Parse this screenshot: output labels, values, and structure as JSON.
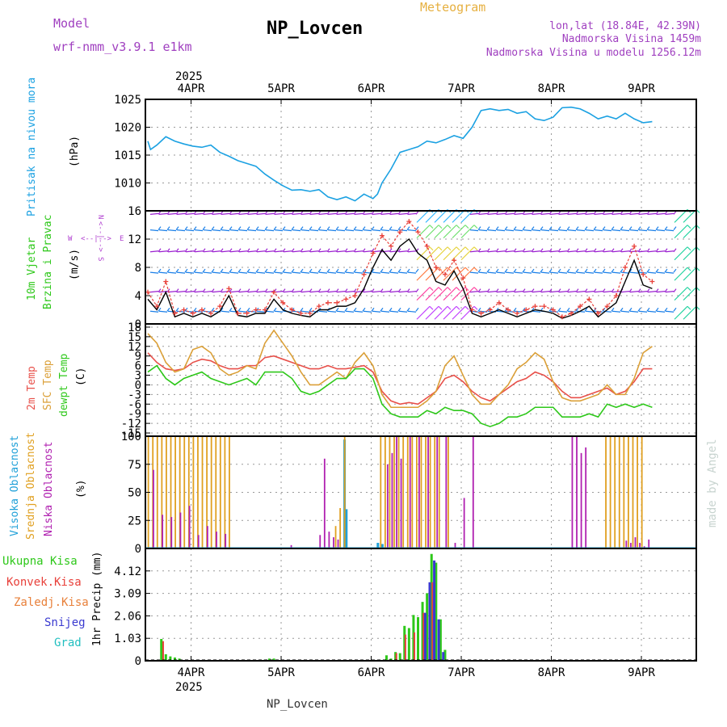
{
  "header": {
    "model_label": "Model",
    "model_name": "wrf-nmm_v3.9.1  e1km",
    "title": "NP_Lovcen",
    "subtitle": "Meteogram",
    "lonlat": "lon,lat (18.84E, 42.39N)",
    "elev": "Nadmorska Visina 1459m",
    "elev_model": "Nadmorska Visina u modelu 1256.12m",
    "watermark": "made by Angel",
    "footer_station": "NP_Lovcen",
    "year_top": "2025",
    "year_bottom": "2025"
  },
  "colors": {
    "pressure": "#1ba1e2",
    "wind_speed": "#000000",
    "wind_gust": "#e8403a",
    "barb_purple": "#9a1fd0",
    "barb_blue": "#1a7fe8",
    "t2m": "#e8504a",
    "sfc": "#dba038",
    "dew": "#2ec81a",
    "cloud_high": "#1fa0d8",
    "cloud_mid": "#e0a020",
    "cloud_low": "#b020b0",
    "rain_total": "#2ec81a",
    "rain_conv": "#e8403a",
    "snow": "#3a3ad0"
  },
  "panels": {
    "pressure": {
      "ylabel_side": "Pritisak na nivou mora",
      "ylabel_unit": "(hPa)",
      "yticks": [
        "1025",
        "1020",
        "1015",
        "1010"
      ]
    },
    "wind": {
      "ylabel_side_1": "10m Vjetar",
      "ylabel_side_2": "Brzina i Pravac",
      "ylabel_unit": "(m/s)",
      "compass_n": "N",
      "compass_e": "E",
      "compass_w": "W",
      "compass_s": "S",
      "compass_arrow_h": "<--|-->",
      "compass_arrow_v": "<--|-->",
      "yticks": [
        "16",
        "12",
        "8",
        "4",
        "0"
      ]
    },
    "temperature": {
      "ylabel_t2m": "2m Temp",
      "ylabel_sfc": "SFC Temp",
      "ylabel_dew": "dewpt Temp",
      "ylabel_unit": "(C)",
      "yticks": [
        "18",
        "15",
        "12",
        "9",
        "6",
        "3",
        "0",
        "-3",
        "-6",
        "-9",
        "-12",
        "-15"
      ]
    },
    "clouds": {
      "ylabel_high": "Visoka Oblacnost",
      "ylabel_mid": "Srednja Oblacnost",
      "ylabel_low": "Niska Oblacnost",
      "ylabel_unit": "(%)",
      "yticks": [
        "100",
        "75",
        "50",
        "25",
        "0"
      ]
    },
    "precip": {
      "legend_total": "Ukupna Kisa",
      "legend_conv": "Konvek.Kisa",
      "legend_frz": "Zaledj.Kisa",
      "legend_snow": "Snijeg",
      "legend_grad": "Grad",
      "ylabel": "1hr Precip (mm)",
      "yticks": [
        "4.12",
        "3.09",
        "2.06",
        "1.03",
        "0"
      ]
    }
  },
  "xaxis": {
    "labels": [
      "4APR",
      "5APR",
      "6APR",
      "7APR",
      "8APR",
      "9APR"
    ]
  },
  "chart_data": [
    {
      "type": "line",
      "panel": "pressure",
      "ylabel": "(hPa)",
      "ylim": [
        1005,
        1025
      ],
      "x_days": [
        0,
        0.03,
        0.1,
        0.2,
        0.3,
        0.4,
        0.5,
        0.6,
        0.7,
        0.8,
        0.9,
        1.0,
        1.1,
        1.2,
        1.3,
        1.4,
        1.5,
        1.6,
        1.7,
        1.8,
        1.9,
        2.0,
        2.1,
        2.2,
        2.3,
        2.4,
        2.5,
        2.55,
        2.6,
        2.7,
        2.8,
        2.9,
        3.0,
        3.1,
        3.2,
        3.3,
        3.4,
        3.5,
        3.6,
        3.7,
        3.8,
        3.9,
        4.0,
        4.1,
        4.2,
        4.3,
        4.4,
        4.5,
        4.6,
        4.7,
        4.8,
        4.9,
        5.0,
        5.1,
        5.2,
        5.3,
        5.4,
        5.5,
        5.6
      ],
      "values": [
        1017.5,
        1016,
        1016.8,
        1018.3,
        1017.5,
        1017.0,
        1016.6,
        1016.4,
        1016.8,
        1015.5,
        1014.8,
        1014.0,
        1013.5,
        1013.0,
        1011.6,
        1010.5,
        1009.5,
        1008.7,
        1008.8,
        1008.5,
        1008.8,
        1007.5,
        1007.0,
        1007.5,
        1006.8,
        1008.0,
        1007.2,
        1008.0,
        1010.0,
        1012.5,
        1015.5,
        1016.0,
        1016.5,
        1017.5,
        1017.2,
        1017.8,
        1018.5,
        1018.0,
        1020.0,
        1023.0,
        1023.3,
        1023.0,
        1023.2,
        1022.5,
        1022.8,
        1021.5,
        1021.2,
        1021.8,
        1023.5,
        1023.6,
        1023.3,
        1022.5,
        1021.5,
        1022.0,
        1021.5,
        1022.5,
        1021.5,
        1020.8,
        1021.0
      ]
    },
    {
      "type": "line",
      "panel": "wind",
      "ylabel": "(m/s)",
      "ylim": [
        0,
        16
      ],
      "series": [
        {
          "name": "",
          "x_days": [
            0,
            0.1,
            0.2,
            0.3,
            0.4,
            0.5,
            0.6,
            0.7,
            0.8,
            0.9,
            1.0,
            1.1,
            1.2,
            1.3,
            1.4,
            1.5,
            1.6,
            1.7,
            1.8,
            1.9,
            2.0,
            2.1,
            2.2,
            2.3,
            2.4,
            2.5,
            2.6,
            2.7,
            2.8,
            2.9,
            3.0,
            3.1,
            3.2,
            3.3,
            3.4,
            3.5,
            3.6,
            3.7,
            3.8,
            3.9,
            4.0,
            4.1,
            4.2,
            4.3,
            4.4,
            4.5,
            4.6,
            4.7,
            4.8,
            4.9,
            5.0,
            5.1,
            5.2,
            5.3,
            5.4,
            5.5,
            5.6
          ],
          "values": [
            3.5,
            2.0,
            4.5,
            1.0,
            1.5,
            1.0,
            1.5,
            1.0,
            1.8,
            4.0,
            1.2,
            1.0,
            1.5,
            1.5,
            3.5,
            2.0,
            1.5,
            1.2,
            1.0,
            2.0,
            2.0,
            2.5,
            2.5,
            3.0,
            5.0,
            8.0,
            10.5,
            9.0,
            11.0,
            12.0,
            10.0,
            9.0,
            6.0,
            5.5,
            7.5,
            5.0,
            1.5,
            1.0,
            1.5,
            2.0,
            1.5,
            1.0,
            1.5,
            2.0,
            1.8,
            1.5,
            0.8,
            1.2,
            1.8,
            2.5,
            1.0,
            2.0,
            3.0,
            6.0,
            9.0,
            5.5,
            5.0
          ]
        },
        {
          "name": "",
          "x_days": [
            0,
            0.1,
            0.2,
            0.3,
            0.4,
            0.5,
            0.6,
            0.7,
            0.8,
            0.9,
            1.0,
            1.1,
            1.2,
            1.3,
            1.4,
            1.5,
            1.6,
            1.7,
            1.8,
            1.9,
            2.0,
            2.1,
            2.2,
            2.3,
            2.4,
            2.5,
            2.6,
            2.7,
            2.8,
            2.9,
            3.0,
            3.1,
            3.2,
            3.3,
            3.4,
            3.5,
            3.6,
            3.7,
            3.8,
            3.9,
            4.0,
            4.1,
            4.2,
            4.3,
            4.4,
            4.5,
            4.6,
            4.7,
            4.8,
            4.9,
            5.0,
            5.1,
            5.2,
            5.3,
            5.4,
            5.5,
            5.6
          ],
          "values": [
            4.5,
            2.5,
            6.0,
            1.5,
            2.0,
            1.5,
            2.0,
            1.5,
            2.5,
            5.0,
            1.5,
            1.5,
            2.0,
            2.0,
            4.5,
            3.0,
            2.0,
            1.5,
            1.5,
            2.5,
            3.0,
            3.0,
            3.5,
            4.0,
            7.0,
            10.0,
            12.5,
            11.0,
            13.0,
            14.5,
            13.0,
            11.0,
            8.0,
            7.0,
            9.0,
            6.5,
            2.0,
            1.5,
            2.0,
            3.0,
            2.0,
            1.5,
            2.0,
            2.5,
            2.5,
            2.0,
            1.0,
            1.5,
            2.5,
            3.5,
            1.5,
            2.5,
            4.0,
            8.0,
            11.0,
            7.0,
            6.0
          ]
        }
      ]
    },
    {
      "type": "line",
      "panel": "temperature",
      "ylabel": "(C)",
      "ylim": [
        -16,
        19
      ],
      "x_days": [
        0,
        0.1,
        0.2,
        0.3,
        0.4,
        0.5,
        0.6,
        0.7,
        0.8,
        0.9,
        1.0,
        1.1,
        1.2,
        1.3,
        1.4,
        1.5,
        1.6,
        1.7,
        1.8,
        1.9,
        2.0,
        2.1,
        2.2,
        2.3,
        2.4,
        2.5,
        2.6,
        2.7,
        2.8,
        2.9,
        3.0,
        3.1,
        3.2,
        3.3,
        3.4,
        3.5,
        3.6,
        3.7,
        3.8,
        3.9,
        4.0,
        4.1,
        4.2,
        4.3,
        4.4,
        4.5,
        4.6,
        4.7,
        4.8,
        4.9,
        5.0,
        5.1,
        5.2,
        5.3,
        5.4,
        5.5,
        5.6
      ],
      "series": [
        {
          "name": "2m Temp",
          "values": [
            10,
            7,
            5,
            4.5,
            5,
            7,
            8,
            7.5,
            6,
            5,
            5,
            6,
            6,
            8.5,
            9,
            8,
            7,
            6,
            5,
            5,
            6,
            5,
            5,
            5.5,
            6,
            4,
            -2,
            -5,
            -6,
            -5.5,
            -6,
            -4,
            -2,
            2,
            3,
            1,
            -2,
            -4,
            -5,
            -3,
            -1,
            1,
            2,
            4,
            3,
            1,
            -2,
            -4,
            -4,
            -3,
            -2,
            -1,
            -3,
            -2,
            1,
            5,
            5
          ]
        },
        {
          "name": "SFC Temp",
          "values": [
            16,
            13,
            7,
            4,
            5,
            11,
            12,
            10,
            5,
            3,
            4,
            6,
            5,
            13,
            17,
            13,
            9,
            4,
            0,
            0,
            2,
            4,
            2,
            7,
            10,
            6,
            -3,
            -7,
            -7,
            -7,
            -7,
            -5,
            -2,
            6,
            9,
            3,
            -3,
            -6,
            -6,
            -3,
            0,
            5,
            7,
            10,
            8,
            1,
            -4,
            -5,
            -5,
            -4,
            -3,
            0,
            -3,
            -3,
            2,
            10,
            12
          ]
        },
        {
          "name": "dewpt Temp",
          "values": [
            4,
            6,
            2,
            0,
            2,
            3,
            4,
            2,
            1,
            0,
            1,
            2,
            0,
            4,
            4,
            4,
            2,
            -2,
            -3,
            -2,
            0,
            2,
            2,
            5,
            5,
            2,
            -6,
            -9,
            -10,
            -10,
            -10,
            -8,
            -9,
            -7,
            -8,
            -8,
            -9,
            -12,
            -13,
            -12,
            -10,
            -10,
            -9,
            -7,
            -7,
            -7,
            -10,
            -10,
            -10,
            -9,
            -10,
            -6,
            -7,
            -6,
            -7,
            -6,
            -7
          ]
        }
      ]
    },
    {
      "type": "bar",
      "panel": "clouds",
      "ylabel": "(%)",
      "ylim": [
        0,
        100
      ],
      "series": [
        {
          "name": "Visoka Oblacnost",
          "x_days": [
            2.18,
            2.2,
            2.55,
            2.6
          ],
          "values": [
            97,
            35,
            5,
            4
          ]
        },
        {
          "name": "Srednja Oblacnost",
          "x_days": [
            0.02,
            0.07,
            0.12,
            0.17,
            0.22,
            0.27,
            0.32,
            0.37,
            0.42,
            0.47,
            0.52,
            0.57,
            0.62,
            0.67,
            0.72,
            0.77,
            0.82,
            0.87,
            0.92,
            2.1,
            2.15,
            2.2,
            2.6,
            2.65,
            2.7,
            2.75,
            2.8,
            2.85,
            2.9,
            2.95,
            3.0,
            3.05,
            3.1,
            3.15,
            3.2,
            3.25,
            3.35,
            5.1,
            5.15,
            5.2,
            5.25,
            5.3,
            5.35,
            5.4,
            5.45,
            5.5
          ],
          "values": [
            100,
            100,
            100,
            100,
            100,
            100,
            100,
            100,
            100,
            100,
            100,
            100,
            100,
            100,
            100,
            100,
            100,
            100,
            100,
            20,
            36,
            100,
            100,
            100,
            100,
            100,
            100,
            100,
            100,
            100,
            100,
            100,
            100,
            100,
            100,
            100,
            100,
            100,
            100,
            100,
            100,
            100,
            100,
            100,
            100,
            100
          ]
        },
        {
          "name": "Niska Oblacnost",
          "x_days": [
            0.05,
            0.15,
            0.25,
            0.35,
            0.45,
            0.55,
            0.65,
            0.75,
            0.85,
            1.58,
            1.9,
            1.95,
            2.0,
            2.05,
            2.1,
            2.65,
            2.7,
            2.75,
            2.8,
            2.9,
            3.0,
            3.1,
            3.2,
            3.3,
            3.4,
            3.5,
            3.6,
            4.7,
            4.75,
            4.8,
            4.85,
            5.3,
            5.35,
            5.4,
            5.45,
            5.5,
            5.55
          ],
          "values": [
            70,
            30,
            28,
            32,
            38,
            12,
            20,
            15,
            13,
            3,
            12,
            80,
            15,
            10,
            8,
            75,
            85,
            100,
            80,
            100,
            100,
            100,
            100,
            100,
            5,
            45,
            100,
            100,
            100,
            85,
            90,
            7,
            5,
            10,
            5,
            2,
            8
          ]
        }
      ]
    },
    {
      "type": "bar",
      "panel": "precip",
      "ylabel": "1hr Precip (mm)",
      "ylim": [
        0,
        5.15
      ],
      "series": [
        {
          "name": "Ukupna Kisa",
          "x_days": [
            0.15,
            0.2,
            0.25,
            0.3,
            0.35,
            1.25,
            1.3,
            1.35,
            1.4,
            2.65,
            2.7,
            2.75,
            2.8,
            2.85,
            2.9,
            2.95,
            3.0,
            3.05,
            3.1,
            3.15,
            3.2,
            3.25,
            3.3
          ],
          "values": [
            1.0,
            0.3,
            0.2,
            0.15,
            0.1,
            0.05,
            0.05,
            0.1,
            0.1,
            0.25,
            0.1,
            0.4,
            0.35,
            1.6,
            1.5,
            2.1,
            2.0,
            2.7,
            3.1,
            4.9,
            4.5,
            1.9,
            0.5
          ]
        },
        {
          "name": "Konvek.Kisa",
          "x_days": [
            0.17,
            2.76,
            2.86,
            2.96,
            3.06,
            3.16
          ],
          "values": [
            0.9,
            0.35,
            1.2,
            1.3,
            2.2,
            3.6
          ]
        },
        {
          "name": "Snijeg",
          "x_days": [
            3.08,
            3.13,
            3.18,
            3.23,
            3.28
          ],
          "values": [
            2.2,
            3.6,
            4.6,
            1.9,
            0.4
          ]
        }
      ]
    }
  ]
}
